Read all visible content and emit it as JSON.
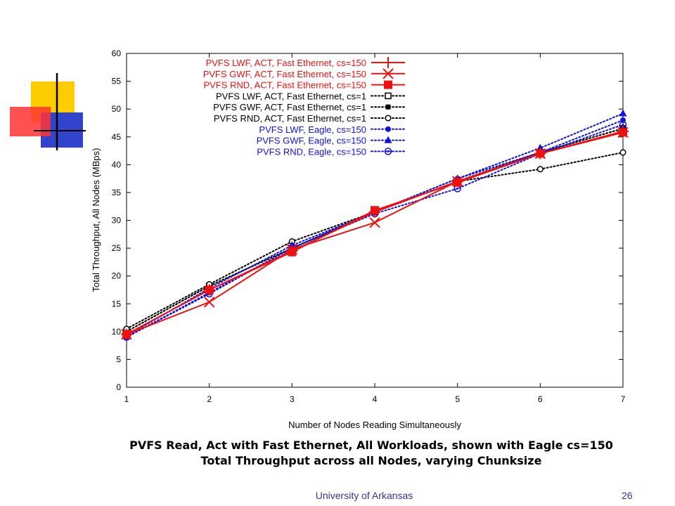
{
  "slide": {
    "caption_line1": "PVFS Read, Act with Fast Ethernet, All Workloads, shown with Eagle cs=150",
    "caption_line2": "Total Throughput across all Nodes, varying Chunksize",
    "footer": "University of Arkansas",
    "page_number": "26",
    "logo_colors": [
      "#ffcc00",
      "#ff3333",
      "#3333cc",
      "#000000"
    ]
  },
  "chart_data": {
    "type": "line",
    "title": "",
    "xlabel": "Number of Nodes Reading Simultaneously",
    "ylabel": "Total Throughput, All Nodes (MBps)",
    "xlim": [
      1,
      7
    ],
    "ylim": [
      0,
      60
    ],
    "xticks": [
      1,
      2,
      3,
      4,
      5,
      6,
      7
    ],
    "yticks": [
      0,
      5,
      10,
      15,
      20,
      25,
      30,
      35,
      40,
      45,
      50,
      55,
      60
    ],
    "grid": false,
    "legend_position": "top-left",
    "x": [
      1,
      2,
      3,
      4,
      5,
      6,
      7
    ],
    "series": [
      {
        "name": "PVFS LWF, ACT, Fast Ethernet, cs=150",
        "color": "#ee1111",
        "dash": "solid",
        "marker": "plus",
        "values": [
          9.5,
          17.5,
          24.5,
          31.5,
          37,
          42,
          46
        ]
      },
      {
        "name": "PVFS GWF, ACT, Fast Ethernet, cs=150",
        "color": "#ee1111",
        "dash": "solid",
        "marker": "x",
        "values": [
          9.5,
          15.3,
          24.8,
          29.6,
          37,
          42,
          45.8
        ]
      },
      {
        "name": "PVFS RND, ACT, Fast Ethernet, cs=150",
        "color": "#ee1111",
        "dash": "solid",
        "marker": "square-filled",
        "values": [
          9.5,
          17.5,
          24.3,
          31.8,
          36.8,
          42,
          45.8
        ]
      },
      {
        "name": "PVFS LWF, ACT, Fast Ethernet, cs=1",
        "color": "#000000",
        "dash": "dotted",
        "marker": "square-open",
        "values": [
          10,
          18.2,
          25,
          31.5,
          37,
          42.2,
          46.5
        ]
      },
      {
        "name": "PVFS GWF, ACT, Fast Ethernet, cs=1",
        "color": "#000000",
        "dash": "dotted",
        "marker": "square-small",
        "values": [
          10,
          18.2,
          25,
          31.5,
          37,
          42.2,
          46.5
        ]
      },
      {
        "name": "PVFS RND, ACT, Fast Ethernet, cs=1",
        "color": "#000000",
        "dash": "dotted",
        "marker": "circle-open",
        "values": [
          10.5,
          18.5,
          26.2,
          31.5,
          37,
          39.2,
          42.2
        ]
      },
      {
        "name": "PVFS LWF, Eagle, cs=150",
        "color": "#1111dd",
        "dash": "dotted",
        "marker": "circle-filled",
        "values": [
          9,
          17,
          25,
          31.5,
          37.5,
          42.2,
          48
        ]
      },
      {
        "name": "PVFS GWF, Eagle, cs=150",
        "color": "#1111dd",
        "dash": "dotted",
        "marker": "triangle-filled",
        "values": [
          9.2,
          17.8,
          25.5,
          31.5,
          37.5,
          43,
          49.2
        ]
      },
      {
        "name": "PVFS RND, Eagle, cs=150",
        "color": "#1111dd",
        "dash": "dotted",
        "marker": "circle-dot",
        "values": [
          9,
          16.8,
          25,
          31.2,
          35.7,
          42,
          47.2
        ]
      }
    ]
  }
}
